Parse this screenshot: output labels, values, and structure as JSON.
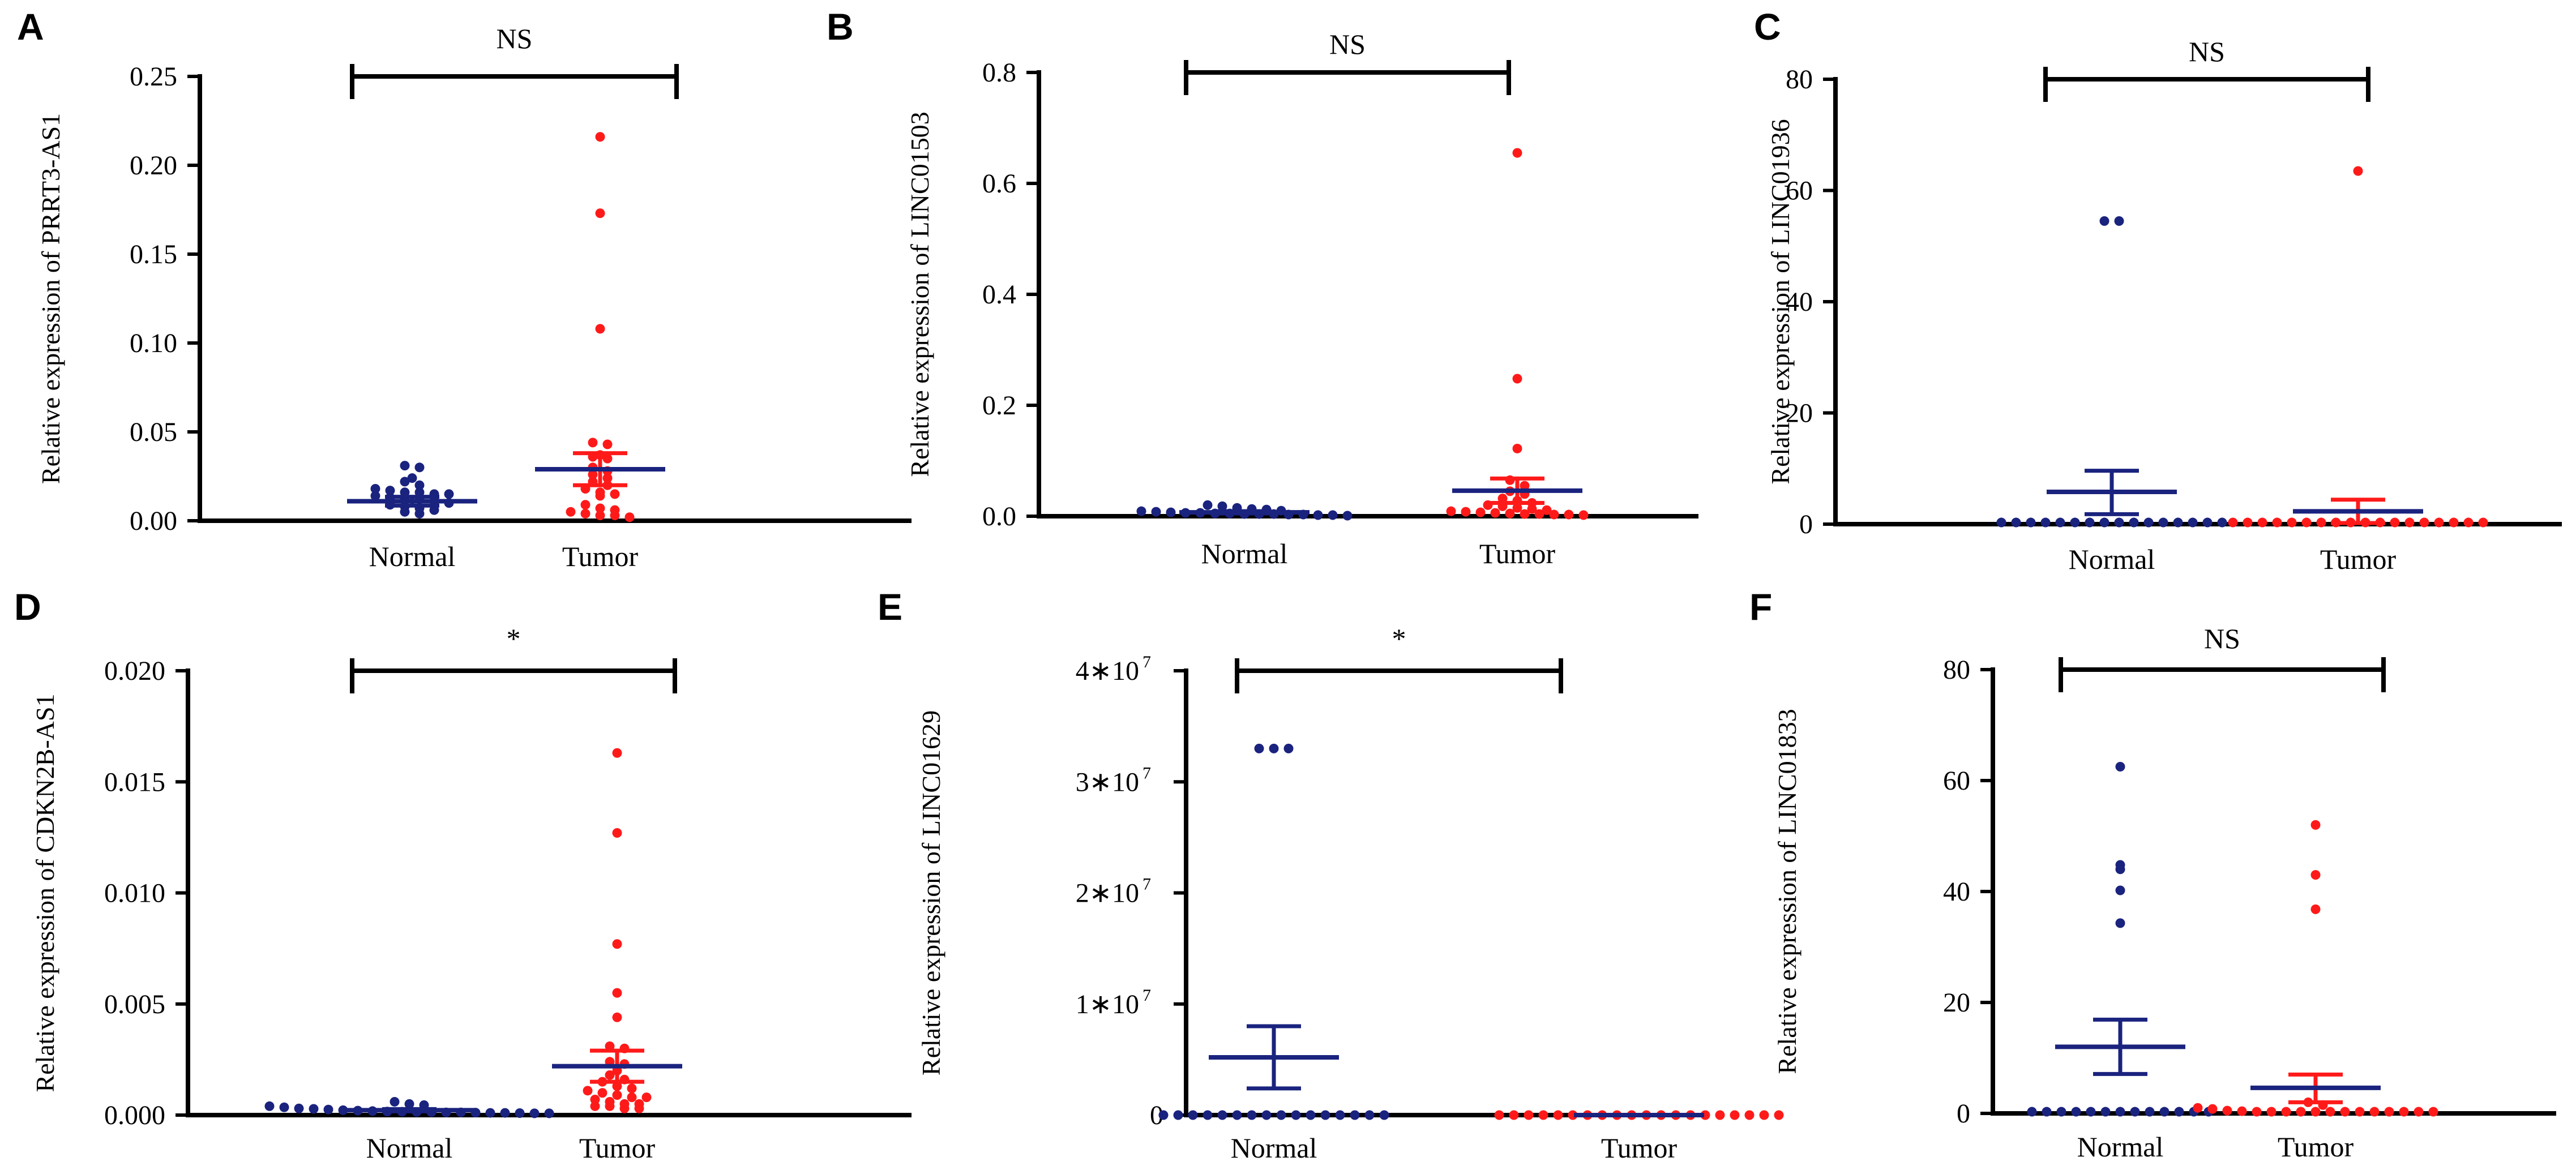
{
  "colors": {
    "normal": "#1a237e",
    "tumor": "#ff1a1a",
    "axis": "#000000"
  },
  "chart_data": [
    {
      "type": "scatter",
      "panel": "A",
      "ylabel": "Relative expression of PRRT3-AS1",
      "categories": [
        "Normal",
        "Tumor"
      ],
      "ylim": [
        0,
        0.25
      ],
      "yticks": [
        {
          "v": 0,
          "label": "0.00"
        },
        {
          "v": 0.05,
          "label": "0.05"
        },
        {
          "v": 0.1,
          "label": "0.10"
        },
        {
          "v": 0.15,
          "label": "0.15"
        },
        {
          "v": 0.2,
          "label": "0.20"
        },
        {
          "v": 0.25,
          "label": "0.25"
        }
      ],
      "significance": "NS",
      "series": [
        {
          "name": "Normal",
          "values": [
            0.031,
            0.03,
            0.024,
            0.022,
            0.02,
            0.018,
            0.017,
            0.016,
            0.016,
            0.015,
            0.015,
            0.014,
            0.013,
            0.012,
            0.012,
            0.011,
            0.01,
            0.009,
            0.008,
            0.007,
            0.006,
            0.005,
            0.004
          ],
          "mean": 0.011,
          "sem_low": 0.0085,
          "sem_high": 0.0135
        },
        {
          "name": "Tumor",
          "values": [
            0.216,
            0.173,
            0.108,
            0.044,
            0.043,
            0.037,
            0.036,
            0.035,
            0.03,
            0.028,
            0.026,
            0.024,
            0.022,
            0.02,
            0.018,
            0.016,
            0.015,
            0.014,
            0.009,
            0.007,
            0.006,
            0.005,
            0.004,
            0.003,
            0.003,
            0.002
          ],
          "mean": 0.029,
          "sem_low": 0.02,
          "sem_high": 0.038
        }
      ]
    },
    {
      "type": "scatter",
      "panel": "B",
      "ylabel": "Relative expression of LINC01503",
      "categories": [
        "Normal",
        "Tumor"
      ],
      "ylim": [
        0,
        0.8
      ],
      "yticks": [
        {
          "v": 0,
          "label": "0.0"
        },
        {
          "v": 0.2,
          "label": "0.2"
        },
        {
          "v": 0.4,
          "label": "0.4"
        },
        {
          "v": 0.6,
          "label": "0.6"
        },
        {
          "v": 0.8,
          "label": "0.8"
        }
      ],
      "significance": "NS",
      "series": [
        {
          "name": "Normal",
          "values": [
            0.02,
            0.018,
            0.015,
            0.013,
            0.012,
            0.01,
            0.009,
            0.008,
            0.007,
            0.006,
            0.006,
            0.005,
            0.005,
            0.004,
            0.004,
            0.004,
            0.003,
            0.003,
            0.002,
            0.002,
            0.001
          ],
          "mean": 0.007,
          "sem_low": 0.005,
          "sem_high": 0.009
        },
        {
          "name": "Tumor",
          "values": [
            0.655,
            0.248,
            0.122,
            0.065,
            0.055,
            0.045,
            0.04,
            0.032,
            0.028,
            0.024,
            0.02,
            0.018,
            0.015,
            0.013,
            0.011,
            0.009,
            0.008,
            0.007,
            0.006,
            0.005,
            0.004,
            0.004,
            0.003,
            0.003,
            0.002
          ],
          "mean": 0.046,
          "sem_low": 0.024,
          "sem_high": 0.068
        }
      ]
    },
    {
      "type": "scatter",
      "panel": "C",
      "ylabel": "Relative expression of LINC01936",
      "categories": [
        "Normal",
        "Tumor"
      ],
      "ylim": [
        0,
        80
      ],
      "yticks": [
        {
          "v": 0,
          "label": "0"
        },
        {
          "v": 20,
          "label": "20"
        },
        {
          "v": 40,
          "label": "40"
        },
        {
          "v": 60,
          "label": "60"
        },
        {
          "v": 80,
          "label": "80"
        }
      ],
      "significance": "NS",
      "series": [
        {
          "name": "Normal",
          "values": [
            54.5,
            54.5,
            0.3,
            0.3,
            0.3,
            0.3,
            0.3,
            0.3,
            0.3,
            0.3,
            0.3,
            0.3,
            0.3,
            0.3,
            0.3,
            0.3,
            0.3,
            0.3
          ],
          "mean": 5.8,
          "sem_low": 1.8,
          "sem_high": 9.6
        },
        {
          "name": "Tumor",
          "values": [
            63.5,
            0.3,
            0.3,
            0.3,
            0.3,
            0.3,
            0.3,
            0.3,
            0.3,
            0.3,
            0.3,
            0.3,
            0.3,
            0.3,
            0.3,
            0.3,
            0.3,
            0.3,
            0.3
          ],
          "mean": 2.3,
          "sem_low": 0.2,
          "sem_high": 4.4
        }
      ]
    },
    {
      "type": "scatter",
      "panel": "D",
      "ylabel": "Relative expression of CDKN2B-AS1",
      "categories": [
        "Normal",
        "Tumor"
      ],
      "ylim": [
        0,
        0.02
      ],
      "yticks": [
        {
          "v": 0,
          "label": "0.000"
        },
        {
          "v": 0.005,
          "label": "0.005"
        },
        {
          "v": 0.01,
          "label": "0.010"
        },
        {
          "v": 0.015,
          "label": "0.015"
        },
        {
          "v": 0.02,
          "label": "0.020"
        }
      ],
      "significance": "*",
      "series": [
        {
          "name": "Normal",
          "values": [
            0.0006,
            0.0005,
            0.00045,
            0.0004,
            0.00035,
            0.0003,
            0.00028,
            0.00025,
            0.00022,
            0.0002,
            0.00018,
            0.00016,
            0.00015,
            0.00014,
            0.00013,
            0.00012,
            0.00012,
            0.00011,
            0.0001,
            0.0001,
            9e-05,
            8e-05,
            8e-05
          ],
          "mean": 0.00022,
          "sem_low": 0.00017,
          "sem_high": 0.00027
        },
        {
          "name": "Tumor",
          "values": [
            0.0163,
            0.0127,
            0.0077,
            0.0055,
            0.0044,
            0.0031,
            0.003,
            0.0024,
            0.0023,
            0.002,
            0.0018,
            0.0016,
            0.0015,
            0.0013,
            0.0012,
            0.0011,
            0.001,
            0.0009,
            0.0008,
            0.0008,
            0.0007,
            0.0006,
            0.0005,
            0.0005,
            0.0004,
            0.0004,
            0.0003,
            0.0003
          ],
          "mean": 0.0022,
          "sem_low": 0.0015,
          "sem_high": 0.0029
        }
      ]
    },
    {
      "type": "scatter",
      "panel": "E",
      "ylabel": "Relative expression of LINC01629",
      "categories": [
        "Normal",
        "Tumor"
      ],
      "ylim": [
        0,
        40000000
      ],
      "yticks": [
        {
          "v": 0,
          "label": "0"
        },
        {
          "v": 10000000,
          "label": "1∗10",
          "exp": "7"
        },
        {
          "v": 20000000,
          "label": "2∗10",
          "exp": "7"
        },
        {
          "v": 30000000,
          "label": "3∗10",
          "exp": "7"
        },
        {
          "v": 40000000,
          "label": "4∗10",
          "exp": "7"
        }
      ],
      "significance": "*",
      "series": [
        {
          "name": "Normal",
          "values": [
            33000000,
            33000000,
            33000000,
            0,
            0,
            0,
            0,
            0,
            0,
            0,
            0,
            0,
            0,
            0,
            0,
            0,
            0,
            0,
            0
          ],
          "mean": 5200000,
          "sem_low": 2400000,
          "sem_high": 8000000
        },
        {
          "name": "Tumor",
          "values": [
            0,
            0,
            0,
            0,
            0,
            0,
            0,
            0,
            0,
            0,
            0,
            0,
            0,
            0,
            0,
            0,
            0,
            0,
            0,
            0
          ],
          "mean": 0,
          "sem_low": 0,
          "sem_high": 0
        }
      ]
    },
    {
      "type": "scatter",
      "panel": "F",
      "ylabel": "Relative expression of LINC01833",
      "categories": [
        "Normal",
        "Tumor"
      ],
      "ylim": [
        0,
        80
      ],
      "yticks": [
        {
          "v": 0,
          "label": "0"
        },
        {
          "v": 20,
          "label": "20"
        },
        {
          "v": 40,
          "label": "40"
        },
        {
          "v": 60,
          "label": "60"
        },
        {
          "v": 80,
          "label": "80"
        }
      ],
      "significance": "NS",
      "series": [
        {
          "name": "Normal",
          "values": [
            62.5,
            44.8,
            44.0,
            40.2,
            34.3,
            0.3,
            0.3,
            0.3,
            0.3,
            0.3,
            0.3,
            0.3,
            0.3,
            0.3,
            0.3,
            0.3,
            0.3,
            0.3
          ],
          "mean": 12.0,
          "sem_low": 7.1,
          "sem_high": 16.9
        },
        {
          "name": "Tumor",
          "values": [
            52.0,
            43.0,
            36.8,
            2.0,
            1.5,
            1.0,
            0.8,
            0.5,
            0.4,
            0.3,
            0.3,
            0.3,
            0.3,
            0.3,
            0.3,
            0.3,
            0.3,
            0.3,
            0.3,
            0.3,
            0.3,
            0.3
          ],
          "mean": 4.6,
          "sem_low": 2.0,
          "sem_high": 7.0
        }
      ]
    }
  ]
}
